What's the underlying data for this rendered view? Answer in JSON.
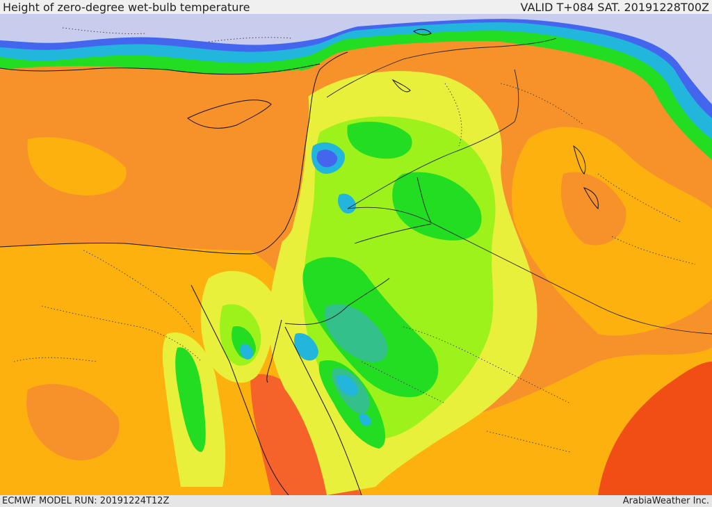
{
  "header": {
    "title": "Height of zero-degree wet-bulb temperature",
    "valid_time": "VALID T+084 SAT. 20191228T00Z"
  },
  "footer": {
    "model_run": "ECMWF MODEL RUN: 20191224T12Z",
    "credit": "ArabiaWeather Inc."
  },
  "map": {
    "colors": {
      "dark_red": "#f04e14",
      "orange_red": "#f7722a",
      "orange": "#f9902a",
      "amber": "#fdb10f",
      "yellow": "#e8f03c",
      "lime": "#9cf21a",
      "green": "#22dd22",
      "teal": "#33c08a",
      "cyan": "#22b6dd",
      "blue": "#4466ee",
      "lavender": "#c8cdee"
    }
  }
}
